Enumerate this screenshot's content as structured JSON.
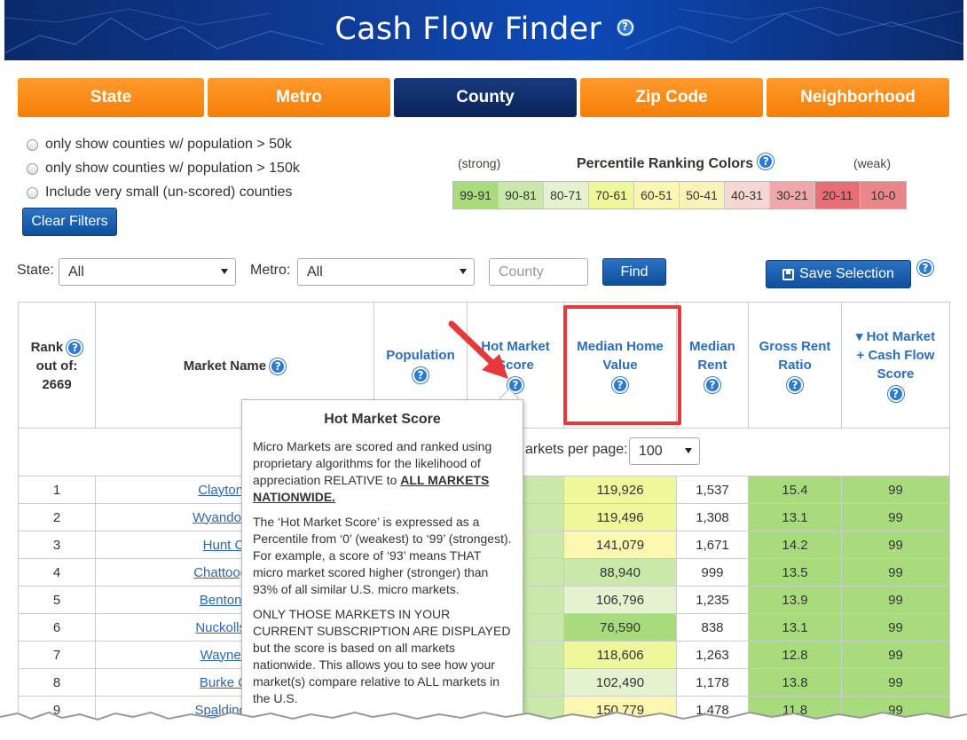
{
  "header": {
    "title": "Cash Flow Finder"
  },
  "tabs": [
    {
      "label": "State",
      "active": false
    },
    {
      "label": "Metro",
      "active": false
    },
    {
      "label": "County",
      "active": true
    },
    {
      "label": "Zip Code",
      "active": false
    },
    {
      "label": "Neighborhood",
      "active": false
    }
  ],
  "filters": {
    "opt1": "only show counties w/ population > 50k",
    "opt2": "only show counties w/ population > 150k",
    "opt3": "Include very small (un-scored) counties",
    "clear": "Clear Filters"
  },
  "legend": {
    "strong": "(strong)",
    "weak": "(weak)",
    "title": "Percentile Ranking Colors",
    "ranges": [
      "99-91",
      "90-81",
      "80-71",
      "70-61",
      "60-51",
      "50-41",
      "40-31",
      "30-21",
      "20-11",
      "10-0"
    ],
    "colors": [
      "#a7db7c",
      "#c9e8a9",
      "#e4f2cf",
      "#eef79a",
      "#fbf7b0",
      "#faf3b8",
      "#f7d7d3",
      "#f0a7aa",
      "#e76e75",
      "#e8868a"
    ]
  },
  "search": {
    "state_label": "State:",
    "state_value": "All",
    "metro_label": "Metro:",
    "metro_value": "All",
    "county_placeholder": "County",
    "find": "Find",
    "save": "Save Selection"
  },
  "table": {
    "headers": {
      "rank_a": "Rank",
      "rank_b": "out of:",
      "rank_total": "2669",
      "name": "Market Name",
      "population": "Population",
      "hot_a": "Hot Market",
      "hot_b": "Score",
      "mhv_a": "Median Home",
      "mhv_b": "Value",
      "rent_a": "Median",
      "rent_b": "Rent",
      "grr_a": "Gross Rent",
      "grr_b": "Ratio",
      "cf_a": "▾ Hot Market",
      "cf_b": "+ Cash Flow",
      "cf_c": "Score"
    },
    "per_page_label": "arkets per page:",
    "per_page_value": "100",
    "rows": [
      {
        "rank": "1",
        "name": "Clayton Cou",
        "mhv": "119,926",
        "rent": "1,537",
        "grr": "15.4",
        "score": "99",
        "mhv_c": "y70"
      },
      {
        "rank": "2",
        "name": "Wyandotte Co",
        "mhv": "119,496",
        "rent": "1,308",
        "grr": "13.1",
        "score": "99",
        "mhv_c": "y70"
      },
      {
        "rank": "3",
        "name": "Hunt Coun",
        "mhv": "141,079",
        "rent": "1,671",
        "grr": "14.2",
        "score": "99",
        "mhv_c": "y60"
      },
      {
        "rank": "4",
        "name": "Chattooga Co",
        "mhv": "88,940",
        "rent": "999",
        "grr": "13.5",
        "score": "99",
        "mhv_c": "g80"
      },
      {
        "rank": "5",
        "name": "Benton Cou",
        "mhv": "106,796",
        "rent": "1,235",
        "grr": "13.9",
        "score": "99",
        "mhv_c": "g70"
      },
      {
        "rank": "6",
        "name": "Nuckolls Cou",
        "mhv": "76,590",
        "rent": "838",
        "grr": "13.1",
        "score": "99",
        "mhv_c": "g99"
      },
      {
        "rank": "7",
        "name": "Wayne Cou",
        "mhv": "118,606",
        "rent": "1,263",
        "grr": "12.8",
        "score": "99",
        "mhv_c": "y70"
      },
      {
        "rank": "8",
        "name": "Burke Coun",
        "mhv": "102,490",
        "rent": "1,178",
        "grr": "13.8",
        "score": "99",
        "mhv_c": "g70"
      },
      {
        "rank": "9",
        "name": "Spalding Cou",
        "mhv": "150,779",
        "rent": "1,478",
        "grr": "11.8",
        "score": "99",
        "mhv_c": "y60"
      }
    ]
  },
  "popover": {
    "title": "Hot Market Score",
    "p1": "Micro Markets are scored and ranked using proprietary algorithms for the likelihood of appreciation RELATIVE to ",
    "p1_bold": "ALL MARKETS NATIONWIDE.",
    "p2": "The ‘Hot Market Score’ is expressed as a Percentile from ‘0’ (weakest) to ‘99’ (strongest). For example, a score of ‘93’ means THAT micro market scored higher (stronger) than 93% of all similar U.S. micro markets.",
    "p3": "ONLY THOSE MARKETS IN YOUR CURRENT SUBSCRIPTION ARE DISPLAYED but the score is based on all markets nationwide. This allows you to see how your market(s) compare relative to ALL markets in the U.S."
  }
}
